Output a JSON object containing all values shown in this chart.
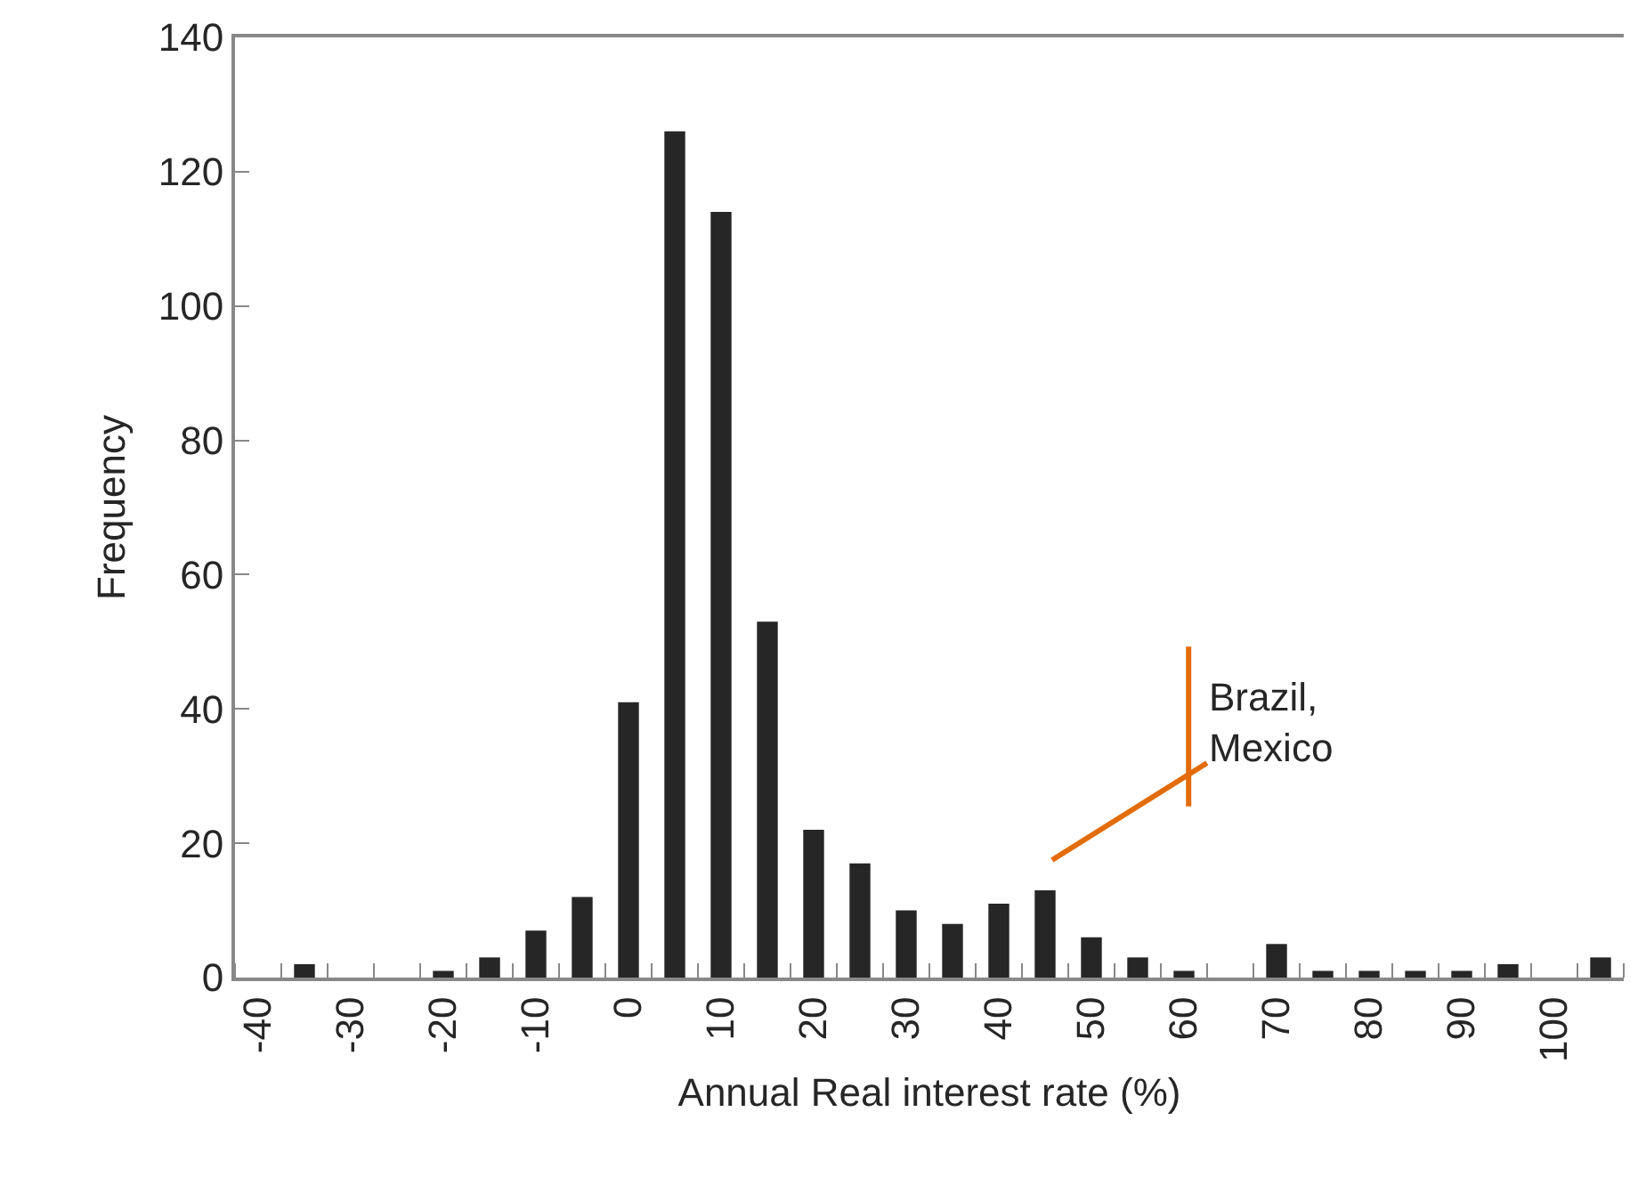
{
  "chart_data": {
    "type": "bar",
    "xlabel": "Annual Real interest rate (%)",
    "ylabel": "Frequency",
    "categories": [
      "-40",
      null,
      "-30",
      null,
      "-20",
      null,
      "-10",
      null,
      "0",
      null,
      "10",
      null,
      "20",
      null,
      "30",
      null,
      "40",
      null,
      "50",
      null,
      "60",
      null,
      "70",
      null,
      "80",
      null,
      "90",
      null,
      "100",
      null
    ],
    "values": [
      0,
      2,
      0,
      0,
      1,
      3,
      7,
      12,
      41,
      126,
      114,
      53,
      22,
      17,
      10,
      8,
      11,
      13,
      6,
      3,
      1,
      0,
      5,
      1,
      1,
      1,
      1,
      2,
      0,
      3
    ],
    "color": "#262626",
    "ylim": [
      0,
      140
    ],
    "yticks": [
      0,
      20,
      40,
      60,
      80,
      100,
      120,
      140
    ],
    "annotations": [
      "Brazil,\nMexico"
    ]
  }
}
